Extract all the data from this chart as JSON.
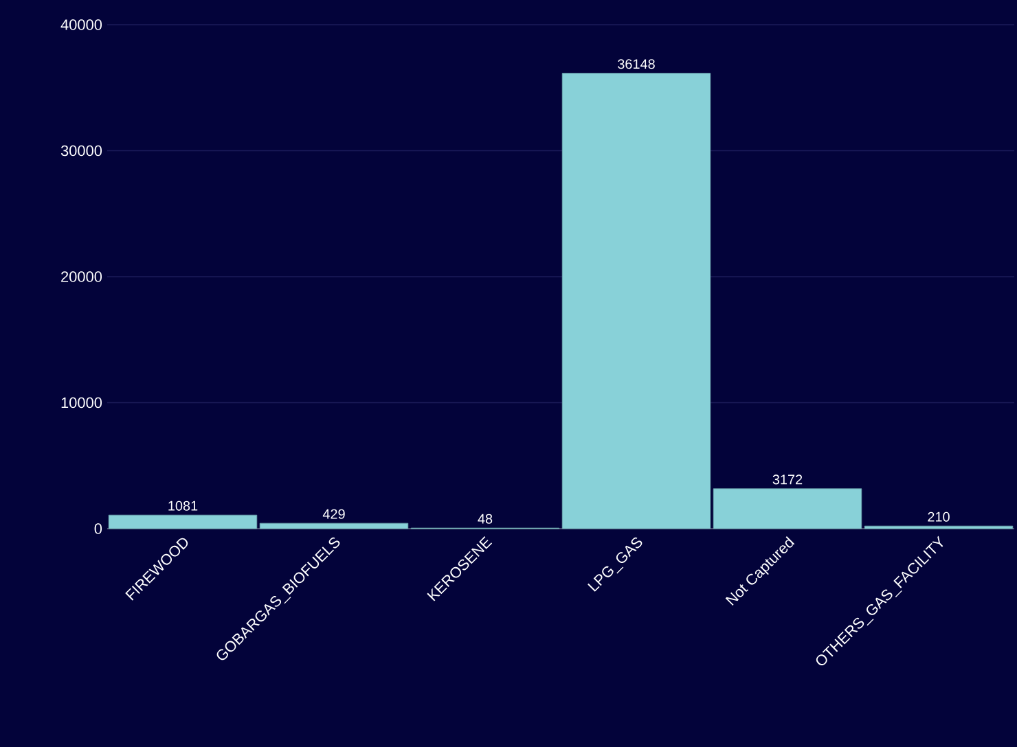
{
  "chart_data": {
    "type": "bar",
    "categories": [
      "FIREWOOD",
      "GOBARGAS_BIOFUELS",
      "KEROSENE",
      "LPG_GAS",
      "Not Captured",
      "OTHERS_GAS_FACILITY"
    ],
    "values": [
      1081,
      429,
      48,
      36148,
      3172,
      210
    ],
    "color": "#88d1d8",
    "ylim": [
      0,
      40000
    ],
    "yticks": [
      0,
      10000,
      20000,
      30000,
      40000
    ],
    "grid": "y",
    "data_labels": true
  }
}
